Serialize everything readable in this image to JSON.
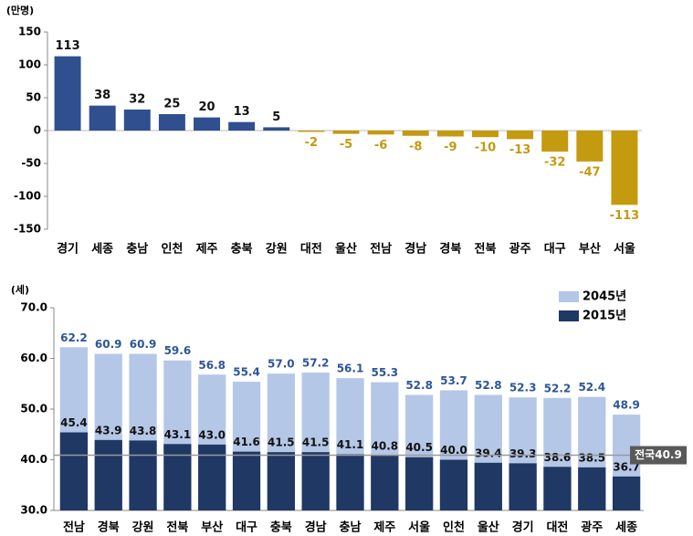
{
  "chart_data": [
    {
      "type": "bar",
      "unit_label": "(만명)",
      "categories": [
        "경기",
        "세종",
        "충남",
        "인천",
        "제주",
        "충북",
        "강원",
        "대전",
        "울산",
        "전남",
        "경남",
        "경북",
        "전북",
        "광주",
        "대구",
        "부산",
        "서울"
      ],
      "values": [
        113,
        38,
        32,
        25,
        20,
        13,
        5,
        -2,
        -5,
        -6,
        -8,
        -9,
        -10,
        -13,
        -32,
        -47,
        -113
      ],
      "positive_color": "#2f4f8f",
      "negative_color": "#c49a0f",
      "ylim": [
        -150,
        150
      ],
      "yticks": [
        -150,
        -100,
        -50,
        0,
        50,
        100,
        150
      ]
    },
    {
      "type": "overlapped_bar",
      "unit_label": "(세)",
      "categories": [
        "전남",
        "경북",
        "강원",
        "전북",
        "부산",
        "대구",
        "충북",
        "경남",
        "충남",
        "제주",
        "서울",
        "인천",
        "울산",
        "경기",
        "대전",
        "광주",
        "세종"
      ],
      "series": [
        {
          "name": "2045년",
          "color": "#b4c7e7",
          "label_color": "#2e5597",
          "values": [
            62.2,
            60.9,
            60.9,
            59.6,
            56.8,
            55.4,
            57.0,
            57.2,
            56.1,
            55.3,
            52.8,
            53.7,
            52.8,
            52.3,
            52.2,
            52.4,
            48.9
          ],
          "value_labels": [
            "62.2",
            "60.9",
            "60.9",
            "59.6",
            "56.8",
            "55.4",
            "57.0",
            "57.2",
            "56.1",
            "55.3",
            "52.8",
            "53.7",
            "52.8",
            "52.3",
            "52.2",
            "52.4",
            "48.9"
          ]
        },
        {
          "name": "2015년",
          "color": "#1f3864",
          "label_color": "#111111",
          "values": [
            45.4,
            43.9,
            43.8,
            43.1,
            43.0,
            41.6,
            41.5,
            41.5,
            41.1,
            40.8,
            40.5,
            40.0,
            39.4,
            39.3,
            38.6,
            38.5,
            36.7
          ],
          "value_labels": [
            "45.4",
            "43.9",
            "43.8",
            "43.1",
            "43.0",
            "41.6",
            "41.5",
            "41.5",
            "41.1",
            "40.8",
            "40.5",
            "40.0",
            "39.4",
            "39.3",
            "38.6",
            "38.5",
            "36.7"
          ]
        }
      ],
      "reference_line": {
        "value": 40.9,
        "label": "전국40.9"
      },
      "ylim": [
        30,
        70
      ],
      "yticks": [
        {
          "value": 30,
          "label": "30.0"
        },
        {
          "value": 40,
          "label": "40.0"
        },
        {
          "value": 50,
          "label": "50.0"
        },
        {
          "value": 60,
          "label": "60.0"
        },
        {
          "value": 70,
          "label": "70.0"
        }
      ],
      "legend": "top-right"
    }
  ]
}
